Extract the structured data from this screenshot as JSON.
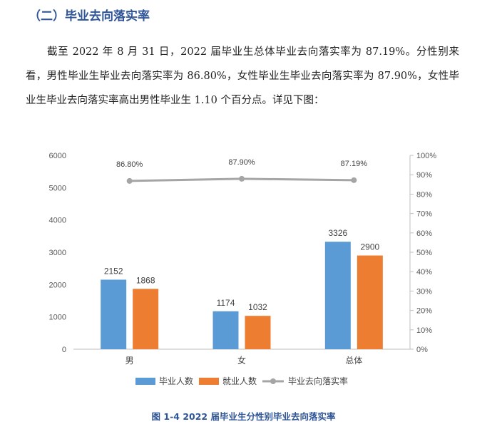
{
  "section": {
    "heading": "（二）毕业去向落实率"
  },
  "paragraph": "截至 2022 年 8 月 31 日，2022 届毕业生总体毕业去向落实率为 87.19%。分性别来看，男性毕业生毕业去向落实率为 86.80%，女性毕业生毕业去向落实率为 87.90%，女性毕业生毕业去向落实率高出男性毕业生 1.10 个百分点。详见下图：",
  "caption": "图 1-4 2022 届毕业生分性别毕业去向落实率",
  "colors": {
    "bar1": "#5b9bd5",
    "bar2": "#ed7d31",
    "line": "#a5a5a5",
    "heading": "#2f5597"
  },
  "chart_data": {
    "type": "bar",
    "categories": [
      "男",
      "女",
      "总体"
    ],
    "series": [
      {
        "name": "毕业人数",
        "values": [
          2152,
          1174,
          3326
        ]
      },
      {
        "name": "就业人数",
        "values": [
          1868,
          1032,
          2900
        ]
      }
    ],
    "line_series": {
      "name": "毕业去向落实率",
      "values": [
        86.8,
        87.9,
        87.19
      ],
      "labels": [
        "86.80%",
        "87.90%",
        "87.19%"
      ]
    },
    "ylim": [
      0,
      6000
    ],
    "yticks": [
      "0",
      "1000",
      "2000",
      "3000",
      "4000",
      "5000",
      "6000"
    ],
    "y2lim": [
      0,
      100
    ],
    "y2ticks": [
      "0%",
      "10%",
      "20%",
      "30%",
      "40%",
      "50%",
      "60%",
      "70%",
      "80%",
      "90%",
      "100%"
    ],
    "legend_position": "bottom",
    "grid": false
  }
}
